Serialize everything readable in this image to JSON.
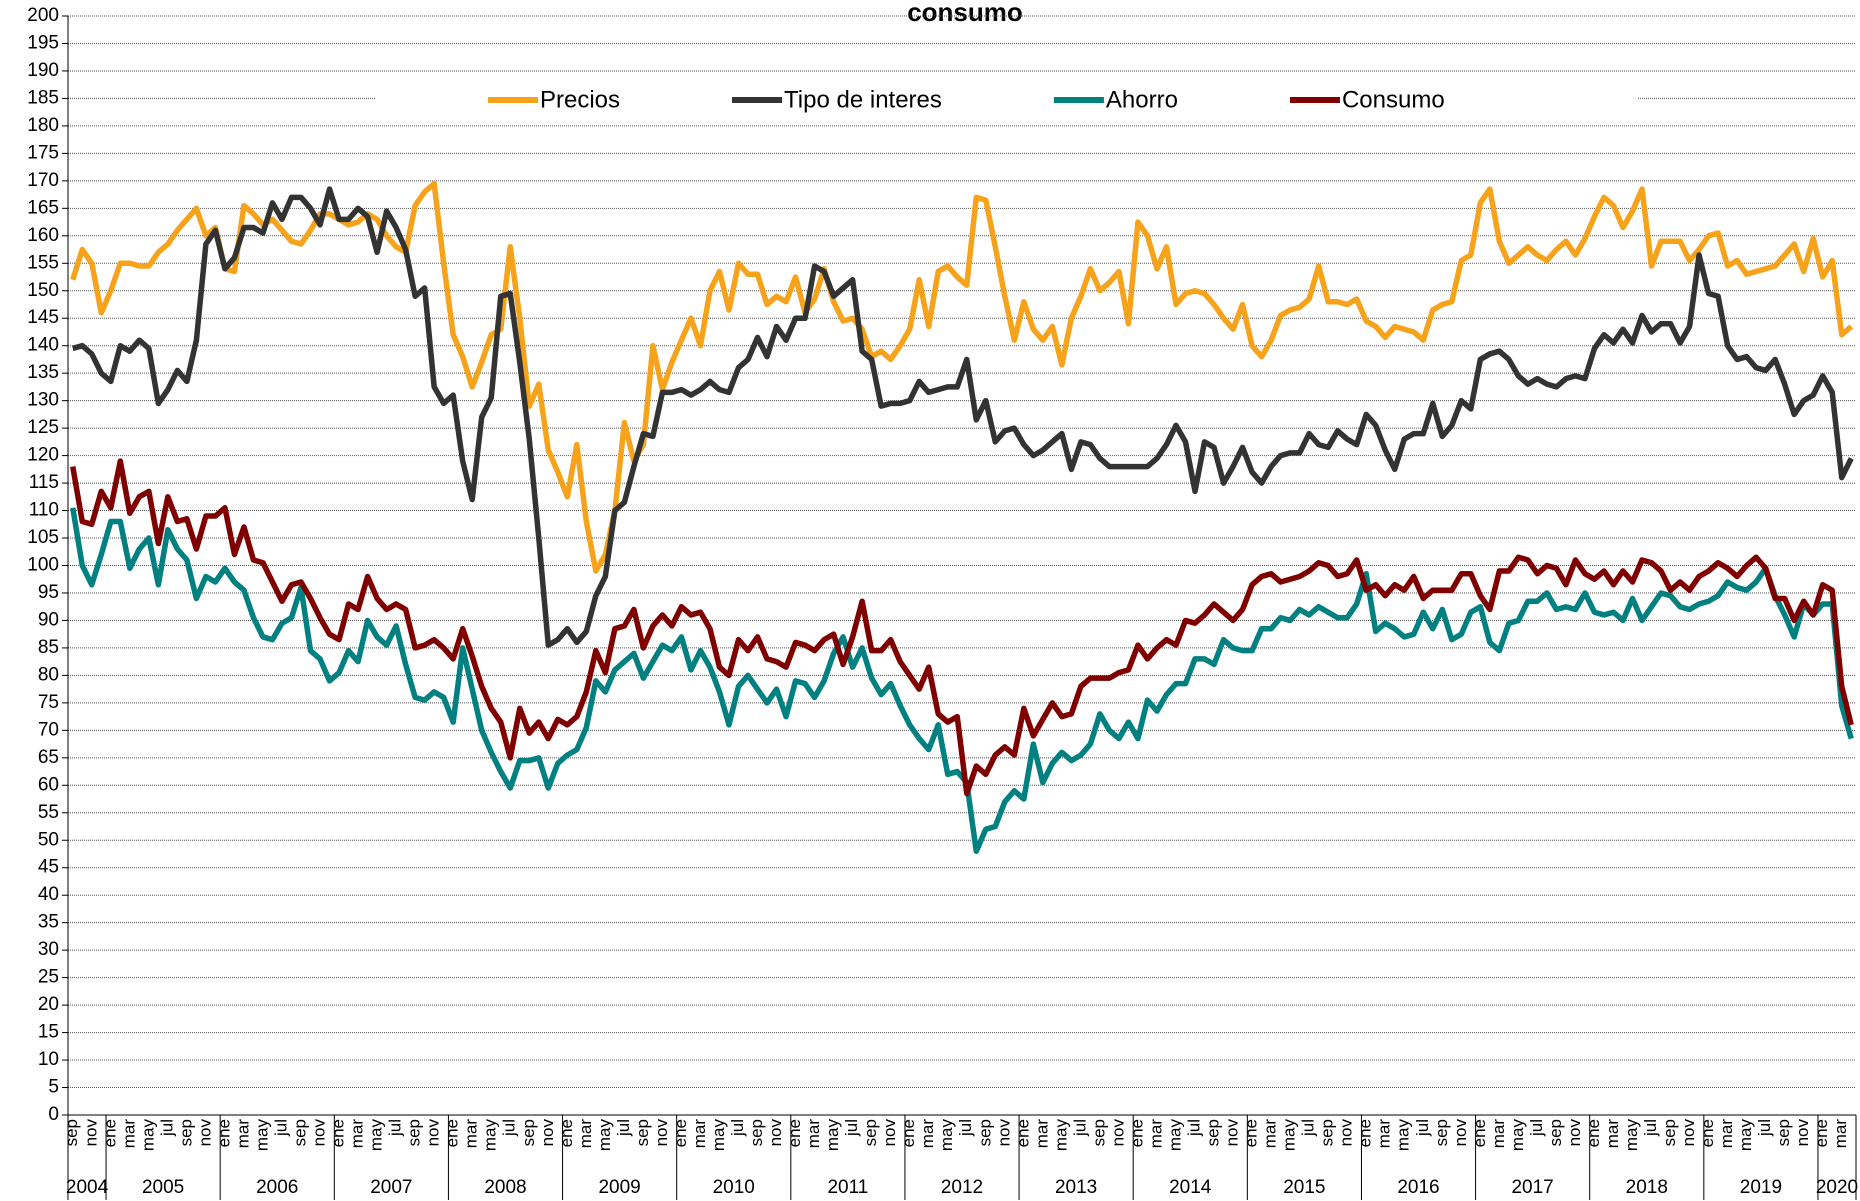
{
  "chart_data": {
    "type": "line",
    "title": "consumo",
    "categories": [
      "sep",
      null,
      "nov",
      null,
      "ene",
      null,
      "mar",
      null,
      "may",
      null,
      "jul",
      null,
      "sep",
      null,
      "nov",
      null,
      "ene",
      null,
      "mar",
      null,
      "may",
      null,
      "jul",
      null,
      "sep",
      null,
      "nov",
      null,
      "ene",
      null,
      "mar",
      null,
      "may",
      null,
      "jul",
      null,
      "sep",
      null,
      "nov",
      null,
      "ene",
      null,
      "mar",
      null,
      "may",
      null,
      "jul",
      null,
      "sep",
      null,
      "nov",
      null,
      "ene",
      null,
      "mar",
      null,
      "may",
      null,
      "jul",
      null,
      "sep",
      null,
      "nov",
      null,
      "ene",
      null,
      "mar",
      null,
      "may",
      null,
      "jul",
      null,
      "sep",
      null,
      "nov",
      null,
      "ene",
      null,
      "mar",
      null,
      "may",
      null,
      "jul",
      null,
      "sep",
      null,
      "nov",
      null,
      "ene",
      null,
      "mar",
      null,
      "may",
      null,
      "jul",
      null,
      "sep",
      null,
      "nov",
      null,
      "ene",
      null,
      "mar",
      null,
      "may",
      null,
      "jul",
      null,
      "sep",
      null,
      "nov",
      null,
      "ene",
      null,
      "mar",
      null,
      "may",
      null,
      "jul",
      null,
      "sep",
      null,
      "nov",
      null,
      "ene",
      null,
      "mar",
      null,
      "may",
      null,
      "jul",
      null,
      "sep",
      null,
      "nov",
      null,
      "ene",
      null,
      "mar",
      null,
      "may",
      null,
      "jul",
      null,
      "sep",
      null,
      "nov",
      null,
      "ene",
      null,
      "mar",
      null,
      "may",
      null,
      "jul",
      null,
      "sep",
      null,
      "nov",
      null,
      "ene",
      null,
      "mar",
      null,
      "may",
      null,
      "jul",
      null,
      "sep",
      null,
      "nov",
      null,
      "ene",
      null,
      "mar",
      null,
      "may",
      null,
      "jul",
      null,
      "sep",
      null,
      "nov",
      null,
      "ene",
      null,
      "mar",
      null
    ],
    "years": [
      "2004",
      "2005",
      "2006",
      "2007",
      "2008",
      "2009",
      "2010",
      "2011",
      "2012",
      "2013",
      "2014",
      "2015",
      "2016",
      "2017",
      "2018",
      "2019",
      "2020"
    ],
    "series": [
      {
        "name": "Precios",
        "color": "#f7a21b",
        "values": [
          152,
          157.5,
          155,
          146,
          150,
          155,
          155,
          154.5,
          154.5,
          157,
          158.5,
          161,
          163,
          165,
          160,
          161.5,
          154,
          153.5,
          165.5,
          164,
          162,
          163,
          161,
          159,
          158.5,
          161,
          164,
          164,
          163,
          162,
          162.5,
          164,
          163,
          160,
          158,
          157,
          165.5,
          168,
          169.5,
          155,
          142,
          138,
          132.5,
          137,
          142,
          143,
          158,
          145,
          129,
          133,
          121,
          117,
          112.5,
          122,
          108,
          99,
          102,
          110,
          126,
          119,
          122,
          140,
          132,
          137,
          141,
          145,
          140,
          150,
          153.5,
          146.5,
          155,
          153,
          153,
          147.5,
          149,
          148,
          152.5,
          146,
          148.5,
          154,
          148,
          144.5,
          145,
          143,
          138,
          139,
          137.5,
          140,
          143,
          152,
          143.5,
          153.5,
          154.5,
          152.5,
          151,
          167,
          166.5,
          158,
          149,
          141,
          148,
          143,
          141,
          143.5,
          136.5,
          145,
          149,
          154,
          150,
          151.5,
          153.5,
          144,
          162.5,
          160,
          154,
          158,
          147.5,
          149.5,
          150,
          149.5,
          147.5,
          145,
          143,
          147.5,
          140,
          138,
          141,
          145.5,
          146.5,
          147,
          148.5,
          154.5,
          148,
          148,
          147.5,
          148.5,
          144.5,
          143.5,
          141.5,
          143.5,
          143,
          142.5,
          141,
          146.5,
          147.5,
          148,
          155.5,
          156.5,
          166,
          168.5,
          159,
          155,
          156.5,
          158,
          156.5,
          155.5,
          157.5,
          159,
          156.5,
          159.5,
          163.5,
          167,
          165.5,
          161.5,
          164.5,
          168.5,
          154.5,
          159,
          159,
          159,
          155.5,
          157.5,
          160,
          160.5,
          154.5,
          155.5,
          153,
          153.5,
          154,
          154.5,
          156.5,
          158.5,
          153.5,
          159.5,
          152.5,
          155.5,
          142,
          143.5
        ]
      },
      {
        "name": "Tipo de interes",
        "color": "#333333",
        "values": [
          139.5,
          140,
          138.5,
          135,
          133.5,
          140,
          139,
          141,
          139.5,
          129.5,
          132,
          135.5,
          133.5,
          141,
          158.5,
          161,
          154,
          156,
          161.5,
          161.5,
          160.5,
          166,
          163,
          167,
          167,
          165,
          162,
          168.5,
          163,
          163,
          165,
          163.5,
          157,
          164.5,
          161.5,
          157.5,
          149,
          150.5,
          132.5,
          129.5,
          131,
          119,
          112,
          127,
          130.5,
          149,
          149.5,
          137,
          123,
          105,
          85.5,
          86.5,
          88.5,
          86,
          88,
          94.5,
          98,
          110,
          111.5,
          118,
          124,
          123.5,
          131.5,
          131.5,
          132,
          131,
          132,
          133.5,
          132,
          131.5,
          136,
          137.5,
          141.5,
          138,
          143.5,
          141,
          145,
          145,
          154.5,
          153.5,
          149,
          150.5,
          152,
          139,
          137.5,
          129,
          129.5,
          129.5,
          130,
          133.5,
          131.5,
          132,
          132.5,
          132.5,
          137.5,
          126.5,
          130,
          122.5,
          124.5,
          125,
          122,
          120,
          121,
          122.5,
          124,
          117.5,
          122.5,
          122,
          119.5,
          118,
          118,
          118,
          118,
          118,
          119.5,
          122,
          125.5,
          122.5,
          113.5,
          122.5,
          121.5,
          115,
          118,
          121.5,
          117,
          115,
          118,
          120,
          120.5,
          120.5,
          124,
          122,
          121.5,
          124.5,
          123,
          122,
          127.5,
          125.5,
          121,
          117.5,
          123,
          124,
          124,
          129.5,
          123.5,
          125.5,
          130,
          128.5,
          137.5,
          138.5,
          139,
          137.5,
          134.5,
          133,
          134,
          133,
          132.5,
          134,
          134.5,
          134,
          139.5,
          142,
          140.5,
          143,
          140.5,
          145.5,
          142.5,
          144,
          144,
          140.5,
          143.5,
          156.5,
          149.5,
          149,
          140,
          137.5,
          138,
          136,
          135.5,
          137.5,
          133,
          127.5,
          130,
          131,
          134.5,
          131.5,
          116,
          119.5
        ]
      },
      {
        "name": "Ahorro",
        "color": "#008080",
        "values": [
          110.5,
          100,
          96.5,
          102,
          108,
          108,
          99.5,
          103,
          105,
          96.5,
          106.5,
          103,
          101,
          94,
          98,
          97,
          99.5,
          97,
          95.5,
          90.5,
          87,
          86.5,
          89.5,
          90.5,
          96,
          84.5,
          83,
          79,
          80.5,
          84.5,
          82.5,
          90,
          87,
          85.5,
          89,
          82,
          76,
          75.5,
          77,
          76,
          71.5,
          85,
          77.5,
          70,
          66,
          62.5,
          59.5,
          64.5,
          64.5,
          65,
          59.5,
          64,
          65.5,
          66.5,
          70.5,
          79,
          77,
          81,
          82.5,
          84,
          79.5,
          82.5,
          85.5,
          84.5,
          87,
          81,
          84.5,
          81.5,
          77,
          71,
          78,
          80,
          77.5,
          75,
          77.5,
          72.5,
          79,
          78.5,
          76,
          79,
          84,
          87,
          81.5,
          85,
          79.5,
          76.5,
          78.5,
          74.5,
          71,
          68.5,
          66.5,
          71,
          62,
          62.5,
          60.5,
          48,
          52,
          52.5,
          57,
          59,
          57.5,
          67.5,
          60.5,
          64,
          66,
          64.5,
          65.5,
          67.5,
          73,
          70,
          68.5,
          71.5,
          68.5,
          75.5,
          73.5,
          76.5,
          78.5,
          78.5,
          83,
          83,
          82,
          86.5,
          85,
          84.5,
          84.5,
          88.5,
          88.5,
          90.5,
          90,
          92,
          91,
          92.5,
          91.5,
          90.5,
          90.5,
          93,
          98.5,
          88,
          89.5,
          88.5,
          87,
          87.5,
          91.5,
          88.5,
          92,
          86.5,
          87.5,
          91.5,
          92.5,
          86,
          84.5,
          89.5,
          90,
          93.5,
          93.5,
          95,
          92,
          92.5,
          92,
          95,
          91.5,
          91,
          91.5,
          90,
          94,
          90,
          92.5,
          95,
          94.5,
          92.5,
          92,
          93,
          93.5,
          94.5,
          97,
          96,
          95.5,
          97,
          99.5,
          94.5,
          91,
          87,
          93,
          91,
          93,
          93,
          74.5,
          68.5
        ]
      },
      {
        "name": "Consumo",
        "color": "#800000",
        "values": [
          118,
          108,
          107.5,
          113.5,
          110.5,
          119,
          109.5,
          112.5,
          113.5,
          104,
          112.5,
          108,
          108.5,
          103,
          109,
          109,
          110.5,
          102,
          107,
          101,
          100.5,
          97,
          93.5,
          96.5,
          97,
          94,
          90.5,
          87.5,
          86.5,
          93,
          92,
          98,
          94,
          92,
          93,
          92,
          85,
          85.5,
          86.5,
          85,
          83,
          88.5,
          83.5,
          78,
          74,
          71.5,
          65,
          74,
          69.5,
          71.5,
          68.5,
          72,
          71,
          72.5,
          77,
          84.5,
          80.5,
          88.5,
          89,
          92,
          85,
          89,
          91,
          89,
          92.5,
          91,
          91.5,
          88.5,
          81.5,
          80,
          86.5,
          84.5,
          87,
          83,
          82.5,
          81.5,
          86,
          85.5,
          84.5,
          86.5,
          87.5,
          82,
          87,
          93.5,
          84.5,
          84.5,
          86.5,
          82.5,
          80,
          77.5,
          81.5,
          73,
          71.5,
          72.5,
          58.5,
          63.5,
          62,
          65.5,
          67,
          65.5,
          74,
          69,
          72,
          75,
          72.5,
          73,
          78,
          79.5,
          79.5,
          79.5,
          80.5,
          81,
          85.5,
          83,
          85,
          86.5,
          85.5,
          90,
          89.5,
          91,
          93,
          91.5,
          90,
          92,
          96.5,
          98,
          98.5,
          97,
          97.5,
          98,
          99,
          100.5,
          100,
          98,
          98.5,
          101,
          95.5,
          96.5,
          94.5,
          96.5,
          95.5,
          98,
          94,
          95.5,
          95.5,
          95.5,
          98.5,
          98.5,
          94.5,
          92,
          99,
          99,
          101.5,
          101,
          98.5,
          100,
          99.5,
          96.5,
          101,
          98.5,
          97.5,
          99,
          96.5,
          99,
          97,
          101,
          100.5,
          99,
          95.5,
          97,
          95.5,
          98,
          99,
          100.5,
          99.5,
          98,
          100,
          101.5,
          99.5,
          94,
          94,
          90,
          93.5,
          91,
          96.5,
          95.5,
          78,
          71
        ]
      }
    ],
    "ylim": [
      0,
      200
    ],
    "yticks": [
      0,
      5,
      10,
      15,
      20,
      25,
      30,
      35,
      40,
      45,
      50,
      55,
      60,
      65,
      70,
      75,
      80,
      85,
      90,
      95,
      100,
      105,
      110,
      115,
      120,
      125,
      130,
      135,
      140,
      145,
      150,
      155,
      160,
      165,
      170,
      175,
      180,
      185,
      190,
      195,
      200
    ],
    "grid": true
  }
}
